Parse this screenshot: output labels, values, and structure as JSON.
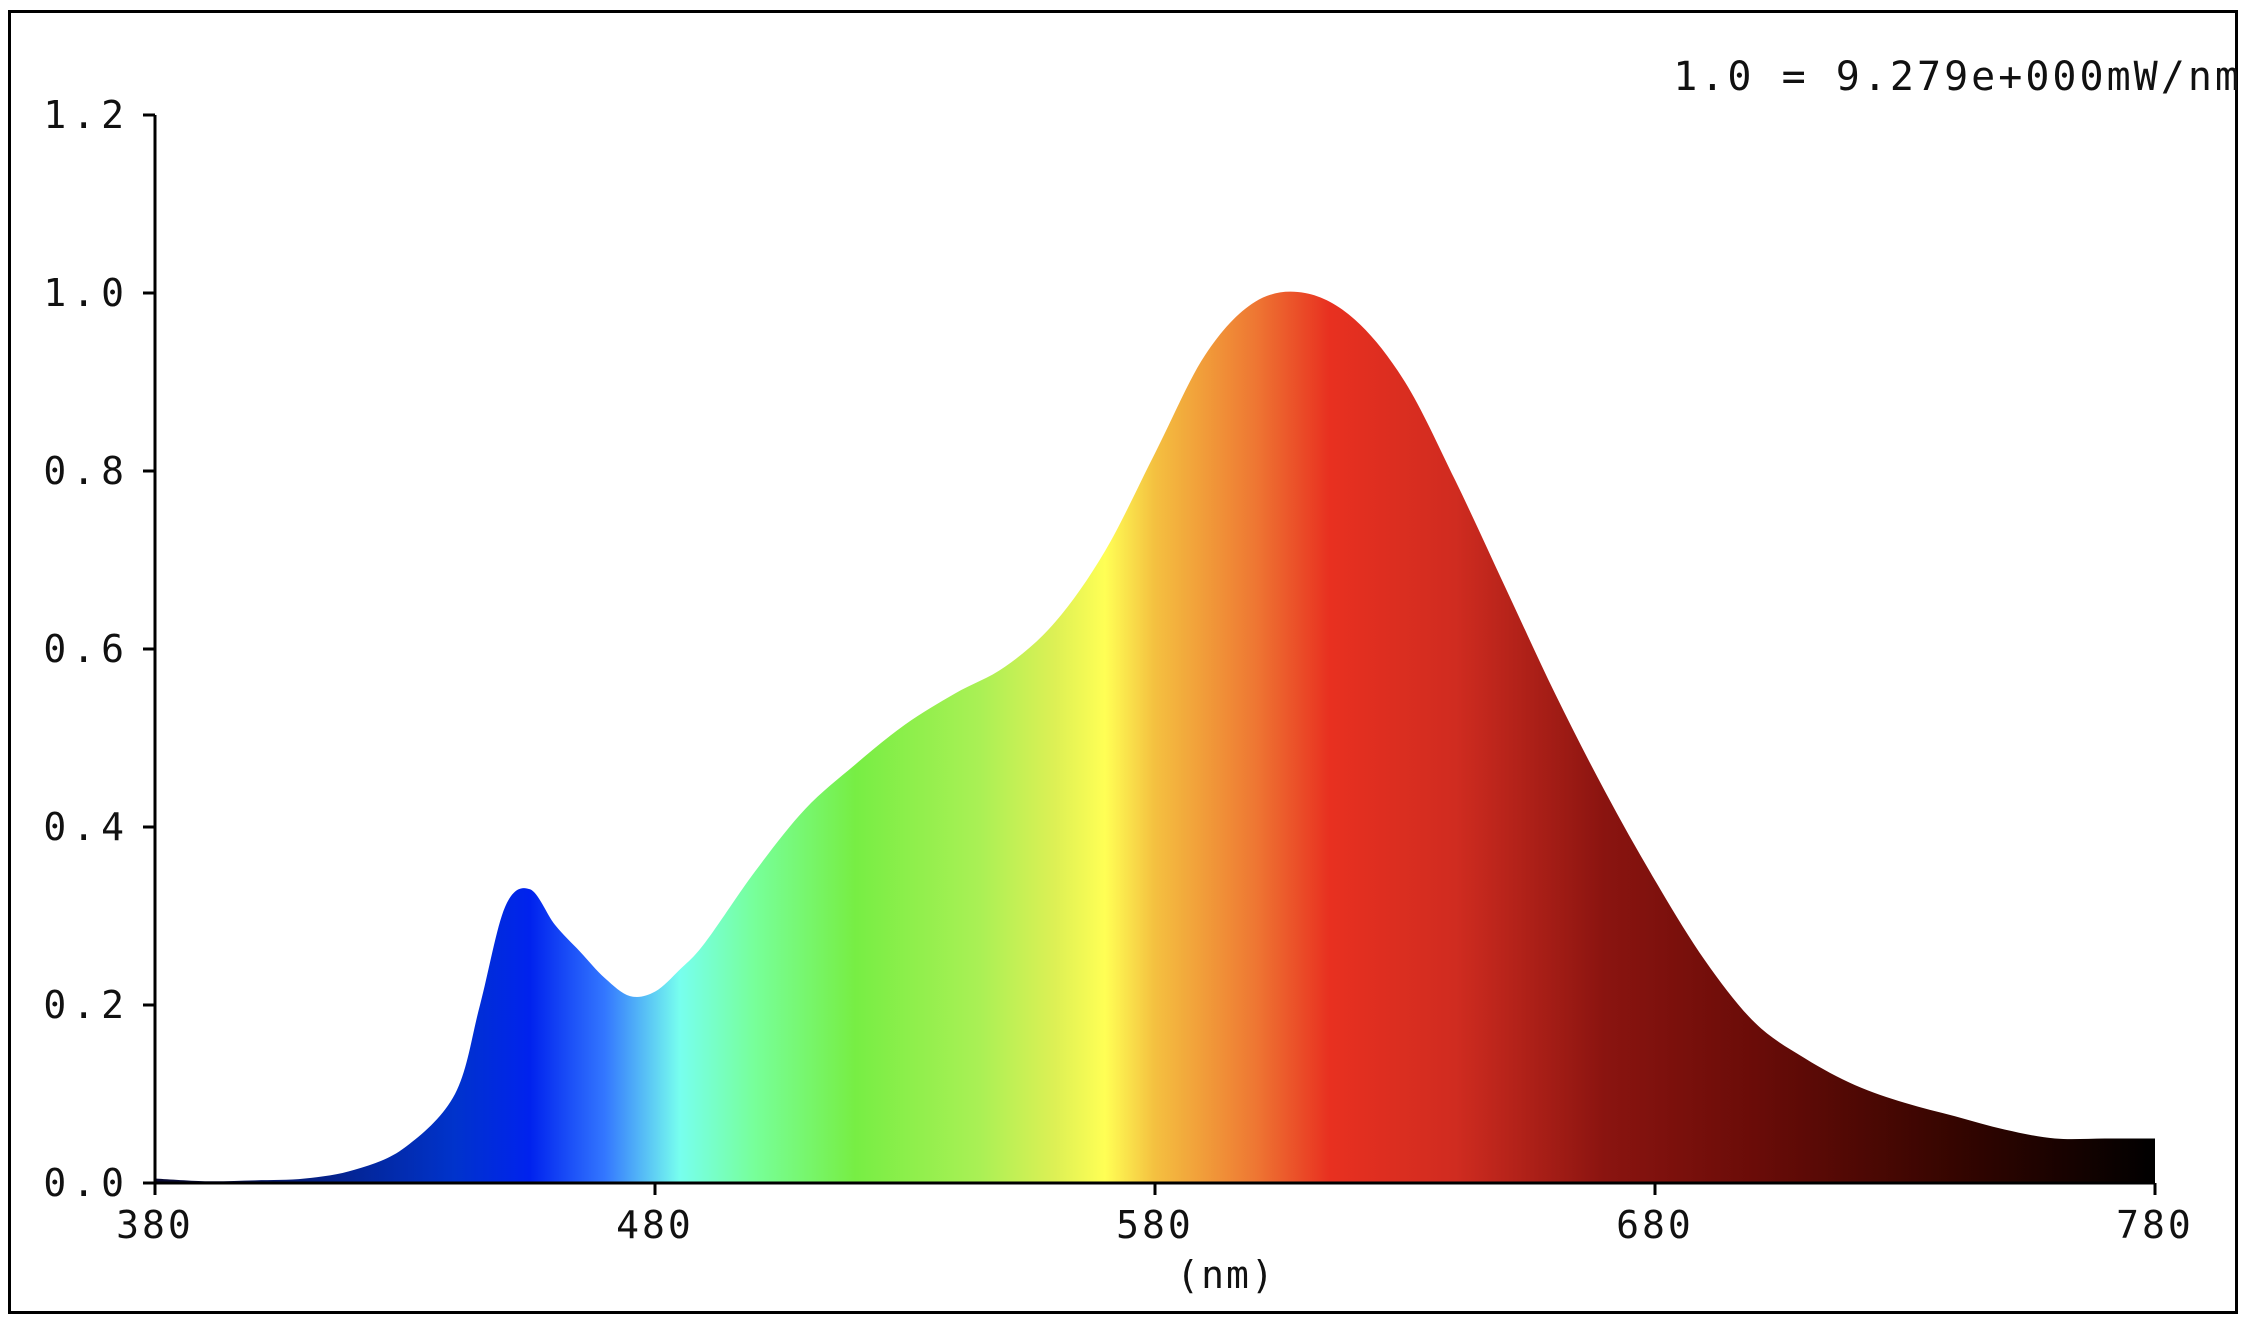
{
  "chart_data": {
    "type": "area",
    "title": "",
    "annotation": "1.0 = 9.279e+000mW/nm",
    "xlabel": "(nm)",
    "ylabel": "",
    "xlim": [
      380,
      780
    ],
    "ylim": [
      0,
      1.2
    ],
    "xticks": [
      "380",
      "480",
      "580",
      "680",
      "780"
    ],
    "yticks": [
      "0.0",
      "0.2",
      "0.4",
      "0.6",
      "0.8",
      "1.0",
      "1.2"
    ],
    "grid": false,
    "fill": "visible-spectrum-gradient",
    "x": [
      380,
      390,
      400,
      410,
      420,
      430,
      440,
      445,
      450,
      455,
      460,
      465,
      470,
      475,
      480,
      485,
      490,
      500,
      510,
      520,
      530,
      540,
      550,
      560,
      570,
      580,
      590,
      600,
      610,
      620,
      630,
      640,
      650,
      660,
      670,
      680,
      690,
      700,
      710,
      720,
      730,
      740,
      750,
      760,
      770,
      780
    ],
    "values": [
      0.005,
      0.002,
      0.003,
      0.005,
      0.015,
      0.04,
      0.1,
      0.2,
      0.31,
      0.33,
      0.29,
      0.26,
      0.23,
      0.21,
      0.215,
      0.24,
      0.27,
      0.35,
      0.42,
      0.47,
      0.515,
      0.55,
      0.58,
      0.63,
      0.71,
      0.82,
      0.93,
      0.99,
      1.0,
      0.97,
      0.9,
      0.79,
      0.67,
      0.55,
      0.44,
      0.34,
      0.25,
      0.18,
      0.14,
      0.11,
      0.09,
      0.075,
      0.06,
      0.05,
      0.05,
      0.05
    ]
  },
  "colors": {
    "axis": "#000000",
    "spectrum_stops": [
      {
        "nm": 380,
        "color": "#0a0a30"
      },
      {
        "nm": 440,
        "color": "#0033cc"
      },
      {
        "nm": 455,
        "color": "#0022ee"
      },
      {
        "nm": 470,
        "color": "#3377ff"
      },
      {
        "nm": 485,
        "color": "#77ffee"
      },
      {
        "nm": 500,
        "color": "#77ff99"
      },
      {
        "nm": 520,
        "color": "#77ee44"
      },
      {
        "nm": 545,
        "color": "#aaf055"
      },
      {
        "nm": 560,
        "color": "#ddf055"
      },
      {
        "nm": 570,
        "color": "#ffff55"
      },
      {
        "nm": 580,
        "color": "#f4c040"
      },
      {
        "nm": 600,
        "color": "#ee7733"
      },
      {
        "nm": 615,
        "color": "#e83020"
      },
      {
        "nm": 640,
        "color": "#d02c20"
      },
      {
        "nm": 670,
        "color": "#8a1410"
      },
      {
        "nm": 700,
        "color": "#6a0c08"
      },
      {
        "nm": 740,
        "color": "#350500"
      },
      {
        "nm": 780,
        "color": "#000000"
      }
    ]
  }
}
